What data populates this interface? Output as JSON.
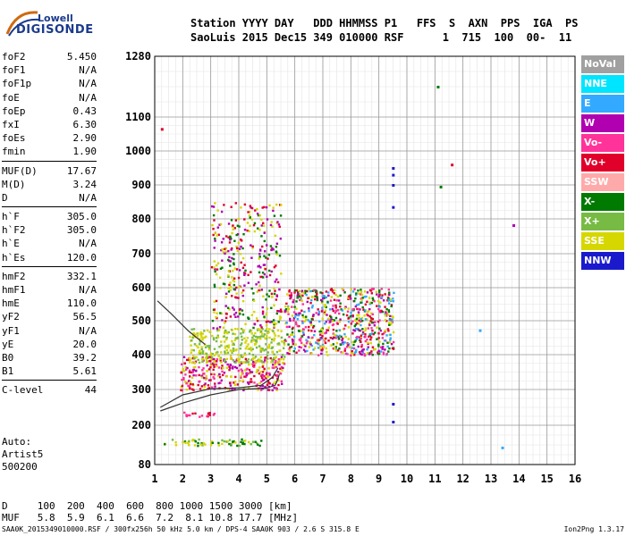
{
  "logo": {
    "line1": "Lowell",
    "line2": "DIGISONDE"
  },
  "header": {
    "line1": "Station YYYY DAY   DDD HHMMSS P1   FFS  S  AXN  PPS  IGA  PS",
    "line2": "SaoLuis 2015 Dec15 349 010000 RSF      1  715  100  00-  11"
  },
  "params": {
    "group1": [
      {
        "name": "foF2",
        "value": "5.450"
      },
      {
        "name": "foF1",
        "value": "N/A"
      },
      {
        "name": "foF1p",
        "value": "N/A"
      },
      {
        "name": "foE",
        "value": "N/A"
      },
      {
        "name": "foEp",
        "value": "0.43"
      },
      {
        "name": "fxI",
        "value": "6.30"
      },
      {
        "name": "foEs",
        "value": "2.90"
      },
      {
        "name": "fmin",
        "value": "1.90"
      }
    ],
    "group2": [
      {
        "name": "MUF(D)",
        "value": "17.67"
      },
      {
        "name": "M(D)",
        "value": "3.24"
      },
      {
        "name": "D",
        "value": "N/A"
      }
    ],
    "group3": [
      {
        "name": "h`F",
        "value": "305.0"
      },
      {
        "name": "h`F2",
        "value": "305.0"
      },
      {
        "name": "h`E",
        "value": "N/A"
      },
      {
        "name": "h`Es",
        "value": "120.0"
      }
    ],
    "group4": [
      {
        "name": "hmF2",
        "value": "332.1"
      },
      {
        "name": "hmF1",
        "value": "N/A"
      },
      {
        "name": "hmE",
        "value": "110.0"
      },
      {
        "name": "yF2",
        "value": "56.5"
      },
      {
        "name": "yF1",
        "value": "N/A"
      },
      {
        "name": "yE",
        "value": "20.0"
      },
      {
        "name": "B0",
        "value": "39.2"
      },
      {
        "name": "B1",
        "value": "5.61"
      }
    ],
    "group5": [
      {
        "name": "C-level",
        "value": "44"
      }
    ]
  },
  "scaling": {
    "line1": "Auto:",
    "line2": "Artist5",
    "line3": "500200"
  },
  "legend": [
    {
      "label": "NoVal",
      "color": "#a0a0a0"
    },
    {
      "label": "NNE",
      "color": "#00e5ff"
    },
    {
      "label": "E",
      "color": "#33aaff"
    },
    {
      "label": "W",
      "color": "#b000b0"
    },
    {
      "label": "Vo-",
      "color": "#ff3399"
    },
    {
      "label": "Vo+",
      "color": "#e0002a"
    },
    {
      "label": "SSW",
      "color": "#ffaaaa"
    },
    {
      "label": "X-",
      "color": "#007a00"
    },
    {
      "label": "X+",
      "color": "#77bb44"
    },
    {
      "label": "SSE",
      "color": "#d6d600"
    },
    {
      "label": "NNW",
      "color": "#1a1acc"
    }
  ],
  "dtable": {
    "row1": "D     100  200  400  600  800 1000 1500 3000 [km]",
    "row2": "MUF   5.8  5.9  6.1  6.6  7.2  8.1 10.8 17.7 [MHz]"
  },
  "footer": {
    "left": "SAA0K_2015349010000.RSF / 300fx256h 50 kHz 5.0 km / DPS-4 SAA0K 903 / 2.6 S 315.8 E",
    "right": "Ion2Png 1.3.17"
  },
  "chart_data": {
    "type": "scatter",
    "title": "",
    "xlabel": "",
    "ylabel": "",
    "xlim": [
      1,
      16
    ],
    "ylim": [
      80,
      1280
    ],
    "x_ticks": [
      1,
      2,
      3,
      4,
      5,
      6,
      7,
      8,
      9,
      10,
      11,
      12,
      13,
      14,
      15,
      16
    ],
    "y_tick_labels": [
      80,
      200,
      300,
      400,
      500,
      600,
      700,
      800,
      900,
      1000,
      1100,
      1280
    ],
    "grid": true,
    "y_scale": "custom (linear 80-200, compressed above 1100)",
    "legend_position": "right",
    "curves": [
      {
        "name": "profile",
        "color": "#333333",
        "points": [
          [
            1.2,
            240
          ],
          [
            2,
            262
          ],
          [
            3,
            285
          ],
          [
            4,
            300
          ],
          [
            5,
            304
          ],
          [
            5.3,
            312
          ],
          [
            5.4,
            330
          ],
          [
            5.45,
            345
          ]
        ]
      },
      {
        "name": "trace",
        "color": "#333333",
        "points": [
          [
            1.2,
            250
          ],
          [
            2,
            285
          ],
          [
            3,
            302
          ],
          [
            4,
            305
          ],
          [
            4.8,
            312
          ],
          [
            5.2,
            335
          ],
          [
            5.4,
            362
          ]
        ]
      },
      {
        "name": "upper",
        "color": "#333333",
        "points": [
          [
            1.1,
            560
          ],
          [
            1.6,
            520
          ],
          [
            2.2,
            470
          ],
          [
            2.8,
            430
          ]
        ]
      }
    ],
    "clusters": [
      {
        "desc": "Es trace",
        "f": [
          1.8,
          3.1
        ],
        "h": [
          225,
          240
        ],
        "colors": [
          "#e0002a",
          "#ff3399"
        ]
      },
      {
        "desc": "E low",
        "f": [
          1.3,
          4.8
        ],
        "h": [
          140,
          160
        ],
        "colors": [
          "#77bb44",
          "#007a00",
          "#d6d600"
        ]
      },
      {
        "desc": "F main",
        "f": [
          1.9,
          5.6
        ],
        "h": [
          300,
          400
        ],
        "colors": [
          "#e0002a",
          "#ff3399",
          "#b000b0",
          "#d6d600"
        ]
      },
      {
        "desc": "F SSE",
        "f": [
          2.2,
          5.6
        ],
        "h": [
          380,
          480
        ],
        "colors": [
          "#d6d600",
          "#77bb44"
        ]
      },
      {
        "desc": "F spread",
        "f": [
          5.6,
          9.5
        ],
        "h": [
          400,
          600
        ],
        "colors": [
          "#e0002a",
          "#ff3399",
          "#b000b0",
          "#007a00",
          "#33aaff",
          "#d6d600"
        ]
      },
      {
        "desc": "spread upper",
        "f": [
          3.0,
          5.5
        ],
        "h": [
          480,
          850
        ],
        "colors": [
          "#d6d600",
          "#007a00",
          "#b000b0",
          "#e0002a"
        ]
      }
    ],
    "isolated": [
      {
        "f": 11.1,
        "h": 1190,
        "color": "#007a00"
      },
      {
        "f": 11.6,
        "h": 960,
        "color": "#e0002a"
      },
      {
        "f": 11.2,
        "h": 895,
        "color": "#007a00"
      },
      {
        "f": 13.8,
        "h": 782,
        "color": "#b000b0"
      },
      {
        "f": 12.6,
        "h": 472,
        "color": "#33aaff"
      },
      {
        "f": 13.4,
        "h": 132,
        "color": "#33aaff"
      },
      {
        "f": 9.5,
        "h": 950,
        "color": "#1a1acc"
      },
      {
        "f": 9.5,
        "h": 930,
        "color": "#1a1acc"
      },
      {
        "f": 9.5,
        "h": 900,
        "color": "#1a1acc"
      },
      {
        "f": 9.5,
        "h": 835,
        "color": "#1a1acc"
      },
      {
        "f": 9.5,
        "h": 260,
        "color": "#1a1acc"
      },
      {
        "f": 9.5,
        "h": 210,
        "color": "#1a1acc"
      },
      {
        "f": 1.25,
        "h": 1065,
        "color": "#e0002a"
      }
    ]
  }
}
